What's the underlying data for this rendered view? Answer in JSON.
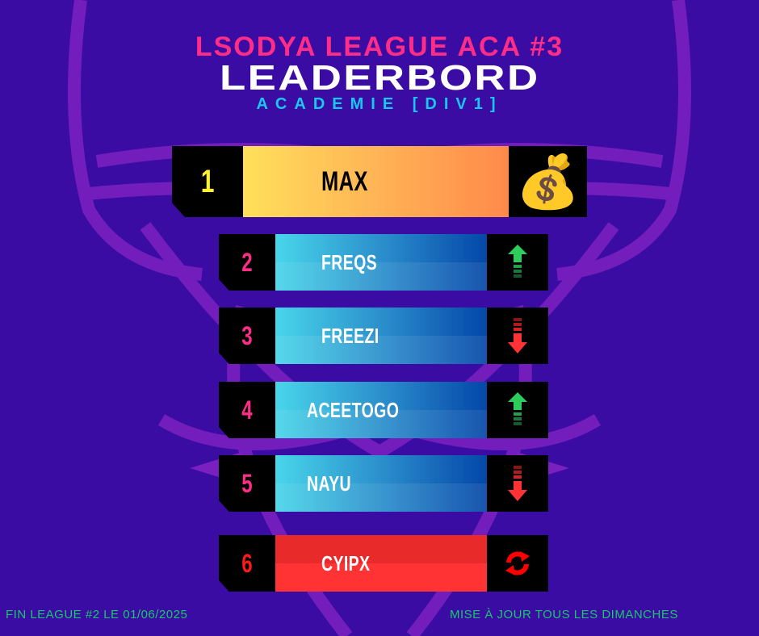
{
  "header": {
    "line1": "LSODYA LEAGUE ACA #3",
    "title": "LEADERBORD",
    "subtitle": "ACADEMIE [DIV1]"
  },
  "colors": {
    "background": "#3a0ca3",
    "accent_pink": "#ff2d87",
    "accent_cyan": "#19c8f0",
    "footer_green": "#17c96a",
    "up": "#2ecc5a",
    "down": "#ff3333"
  },
  "rows": [
    {
      "rank": "1",
      "name": "MAX",
      "icon": "money-bag-icon",
      "rank_color": "#fff035",
      "style": "gold"
    },
    {
      "rank": "2",
      "name": "FREQS",
      "icon": "arrow-up-icon",
      "rank_color": "#ff2d87",
      "style": "blue"
    },
    {
      "rank": "3",
      "name": "FREEZI",
      "icon": "arrow-down-icon",
      "rank_color": "#ff2d87",
      "style": "blue"
    },
    {
      "rank": "4",
      "name": "ACEETOGO",
      "icon": "arrow-up-icon",
      "rank_color": "#ff2d87",
      "style": "blue"
    },
    {
      "rank": "5",
      "name": "NAYU",
      "icon": "arrow-down-icon",
      "rank_color": "#ff2d87",
      "style": "blue"
    },
    {
      "rank": "6",
      "name": "CYIPX",
      "icon": "refresh-icon",
      "rank_color": "#ff1a1a",
      "style": "red"
    }
  ],
  "footer": {
    "left": "FIN  LEAGUE #2  LE 01/06/2025",
    "right": "MISE À JOUR TOUS LES DIMANCHES"
  }
}
